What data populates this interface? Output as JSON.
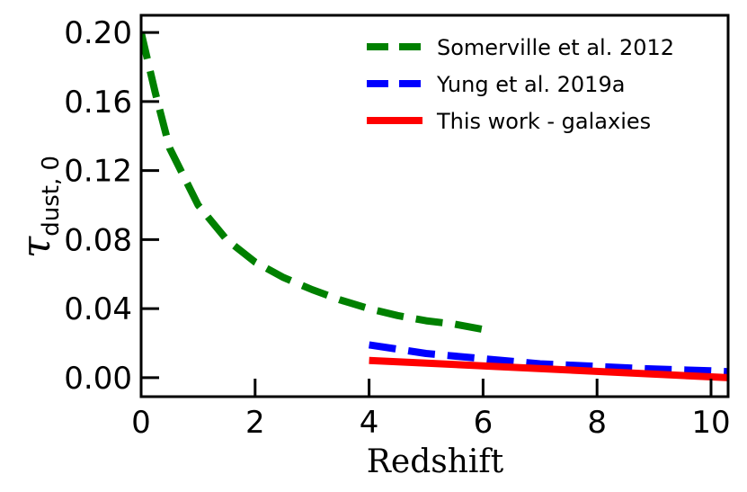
{
  "chart_data": {
    "type": "line",
    "title": "",
    "xlabel": "Redshift",
    "ylabel_main": "τ",
    "ylabel_sub": "dust, 0",
    "xlim": [
      0,
      10.3
    ],
    "ylim": [
      -0.011,
      0.21
    ],
    "x_ticks": [
      0,
      2,
      4,
      6,
      8,
      10
    ],
    "x_tick_labels": [
      "0",
      "2",
      "4",
      "6",
      "8",
      "10"
    ],
    "y_ticks": [
      0.0,
      0.04,
      0.08,
      0.12,
      0.16,
      0.2
    ],
    "y_tick_labels": [
      "0.00",
      "0.04",
      "0.08",
      "0.12",
      "0.16",
      "0.20"
    ],
    "grid": false,
    "legend_position": "top-right",
    "series": [
      {
        "name": "Somerville et al. 2012",
        "color": "#008000",
        "style": "dashed",
        "x": [
          0,
          0.25,
          0.5,
          1.0,
          1.5,
          2.0,
          2.5,
          3.0,
          3.5,
          4.0,
          4.5,
          5.0,
          5.5,
          6.0
        ],
        "y": [
          0.2,
          0.165,
          0.133,
          0.1,
          0.08,
          0.067,
          0.058,
          0.051,
          0.045,
          0.04,
          0.036,
          0.033,
          0.031,
          0.028
        ]
      },
      {
        "name": "Yung et al. 2019a",
        "color": "#0000ff",
        "style": "dashed",
        "x": [
          4,
          5,
          6,
          7,
          8,
          9,
          10,
          10.3
        ],
        "y": [
          0.019,
          0.014,
          0.011,
          0.008,
          0.0065,
          0.005,
          0.004,
          0.0035
        ]
      },
      {
        "name": "This work - galaxies",
        "color": "#ff0000",
        "style": "solid",
        "x": [
          4,
          10.3
        ],
        "y": [
          0.01,
          0.0
        ]
      }
    ]
  }
}
